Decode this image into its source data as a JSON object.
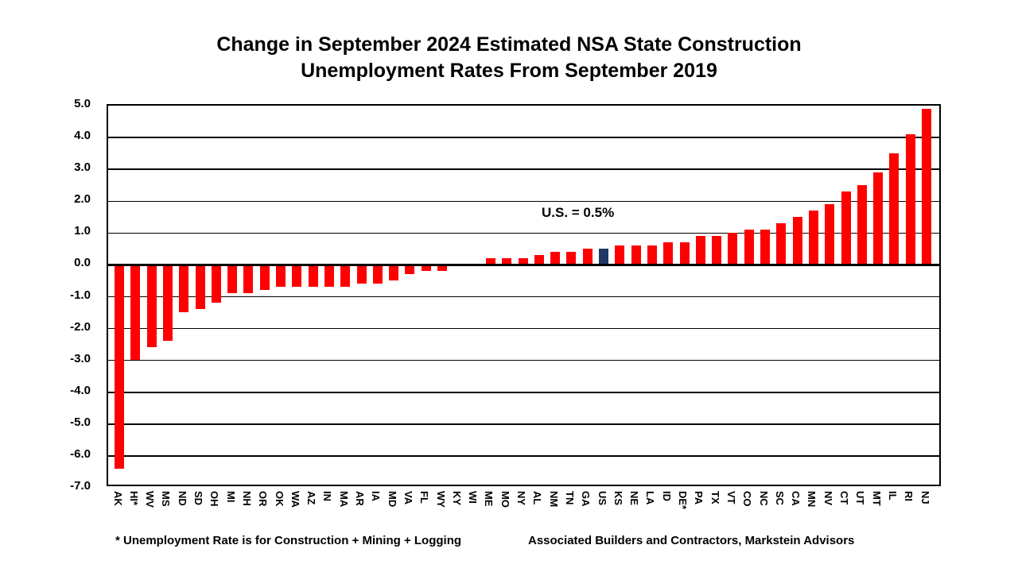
{
  "title": {
    "line1": "Change in September 2024 Estimated NSA State Construction",
    "line2": "Unemployment Rates From September 2019"
  },
  "annotation": "U.S. = 0.5%",
  "footnote_left": "* Unemployment Rate is for Construction + Mining + Logging",
  "footnote_right": "Associated Builders and Contractors, Markstein Advisors",
  "colors": {
    "bar_red": "#FF0000",
    "bar_navy": "#1F3864",
    "grid": "#000000",
    "text": "#000000",
    "background": "#FFFFFF"
  },
  "chart_data": {
    "type": "bar",
    "title": "Change in September 2024 Estimated NSA State Construction Unemployment Rates From September 2019",
    "xlabel": "",
    "ylabel": "",
    "ylim": [
      -7.0,
      5.0
    ],
    "ytick_step": 1.0,
    "ytick_labels": [
      "5.0",
      "4.0",
      "3.0",
      "2.0",
      "1.0",
      "0.0",
      "-1.0",
      "-2.0",
      "-3.0",
      "-4.0",
      "-5.0",
      "-6.0",
      "-7.0"
    ],
    "grid": true,
    "legend": "none",
    "x_tick_rotation": 90,
    "highlight_category": "US",
    "highlight_note": "U.S. = 0.5%",
    "bar_color": "#FF0000",
    "highlight_color": "#1F3864",
    "categories": [
      "AK",
      "HI*",
      "WV",
      "MS",
      "ND",
      "SD",
      "OH",
      "MI",
      "NH",
      "OR",
      "OK",
      "WA",
      "AZ",
      "IN",
      "MA",
      "AR",
      "IA",
      "MD",
      "VA",
      "FL",
      "WY",
      "KY",
      "WI",
      "ME",
      "MO",
      "NY",
      "AL",
      "NM",
      "TN",
      "GA",
      "US",
      "KS",
      "NE",
      "LA",
      "ID",
      "DE*",
      "PA",
      "TX",
      "VT",
      "CO",
      "NC",
      "SC",
      "CA",
      "MN",
      "NV",
      "CT",
      "UT",
      "MT",
      "IL",
      "RI",
      "NJ"
    ],
    "values": [
      -6.4,
      -3.0,
      -2.6,
      -2.4,
      -1.5,
      -1.4,
      -1.2,
      -0.9,
      -0.9,
      -0.8,
      -0.7,
      -0.7,
      -0.7,
      -0.7,
      -0.7,
      -0.6,
      -0.6,
      -0.5,
      -0.3,
      -0.2,
      -0.2,
      0.0,
      0.0,
      0.2,
      0.2,
      0.2,
      0.3,
      0.4,
      0.4,
      0.5,
      0.5,
      0.6,
      0.6,
      0.6,
      0.7,
      0.7,
      0.9,
      0.9,
      1.0,
      1.1,
      1.1,
      1.3,
      1.5,
      1.7,
      1.9,
      2.3,
      2.5,
      2.9,
      3.5,
      4.1,
      4.9
    ]
  }
}
